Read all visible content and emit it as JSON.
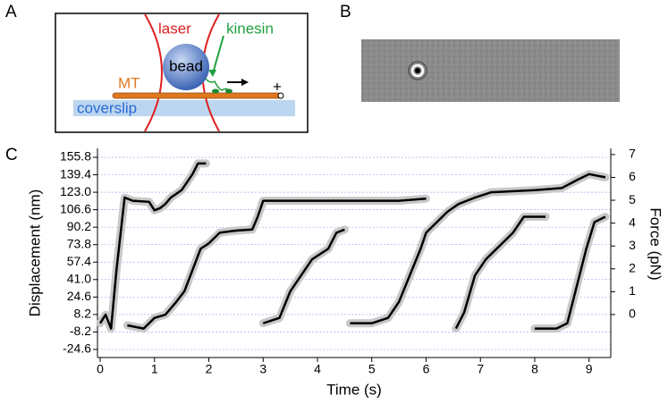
{
  "panel_labels": [
    "A",
    "B",
    "C"
  ],
  "diagram": {
    "laser": "laser",
    "kinesin": "kinesin",
    "bead": "bead",
    "microtubule": "MT",
    "plus_end": "+",
    "coverslip": "coverslip"
  },
  "chart_data": {
    "type": "line",
    "xlabel": "Time (s)",
    "ylabel": "Displacement (nm)",
    "y2label": "Force (pN)",
    "xlim": [
      -0.05,
      9.4
    ],
    "xticks": [
      0,
      1,
      2,
      3,
      4,
      5,
      6,
      7,
      8,
      9
    ],
    "ylim": [
      -32.2,
      164.2
    ],
    "yticks": [
      -24.6,
      -8.2,
      8.2,
      24.6,
      {
        "value": 41,
        "label": "41.0"
      },
      57.4,
      73.8,
      90.2,
      106.6,
      {
        "value": 123,
        "label": "123.0"
      },
      139.4,
      155.8
    ],
    "y2lim": [
      -1.88,
      7.27
    ],
    "y2ticks": [
      0,
      1,
      2,
      3,
      4,
      5,
      6,
      7
    ],
    "grid": true,
    "series": [
      {
        "color": "#000000",
        "x": [
          0,
          0.1,
          0.2,
          0.3,
          0.45,
          0.6,
          0.9,
          1.0,
          1.1,
          1.2,
          1.3,
          1.5,
          1.7,
          1.8,
          1.95
        ],
        "values": [
          0,
          8,
          -5,
          50,
          118,
          115,
          114,
          106,
          108,
          112,
          118,
          125,
          140,
          150,
          150
        ]
      },
      {
        "color": "#000000",
        "x": [
          0.5,
          0.8,
          1.0,
          1.2,
          1.4,
          1.55,
          1.7,
          1.85,
          2.0,
          2.2,
          2.5,
          2.8,
          2.9,
          3.0,
          3.5,
          4.5,
          5.5,
          6.0
        ],
        "values": [
          -2,
          -5,
          5,
          8,
          20,
          30,
          50,
          70,
          75,
          85,
          87,
          88,
          100,
          115,
          115,
          115,
          115,
          117
        ]
      },
      {
        "color": "#000000",
        "x": [
          3.0,
          3.3,
          3.5,
          3.7,
          3.9,
          4.2,
          4.35,
          4.5
        ],
        "values": [
          0,
          5,
          30,
          45,
          60,
          70,
          85,
          88
        ]
      },
      {
        "color": "#000000",
        "x": [
          4.6,
          5.0,
          5.3,
          5.5,
          5.7,
          5.9,
          6.0,
          6.2,
          6.4,
          6.6,
          6.9,
          7.2,
          8.0,
          8.5,
          8.8,
          9.0,
          9.3
        ],
        "values": [
          0,
          0,
          5,
          20,
          45,
          70,
          85,
          95,
          105,
          112,
          118,
          123,
          125,
          127,
          135,
          140,
          137
        ]
      },
      {
        "color": "#000000",
        "x": [
          6.55,
          6.7,
          6.9,
          7.1,
          7.3,
          7.6,
          7.8,
          8.2
        ],
        "values": [
          -5,
          10,
          45,
          60,
          70,
          85,
          100,
          100
        ]
      },
      {
        "color": "#000000",
        "x": [
          8.0,
          8.4,
          8.6,
          8.8,
          8.95,
          9.1,
          9.3
        ],
        "values": [
          -5,
          -5,
          0,
          40,
          70,
          95,
          100
        ]
      }
    ]
  }
}
